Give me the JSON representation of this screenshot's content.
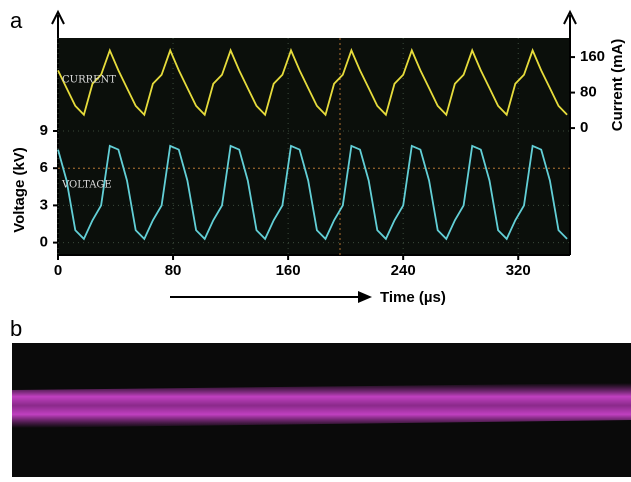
{
  "chart_data": {
    "type": "line",
    "panel_label": "a",
    "xlabel": "Time (µs)",
    "ylabel": "Voltage (kV)",
    "y2label": "Current (mA)",
    "x": [
      0,
      6,
      12,
      18,
      24,
      30,
      36,
      42,
      48,
      54,
      60,
      66,
      72,
      78,
      84,
      90,
      96,
      102,
      108,
      114,
      120,
      126,
      132,
      138,
      144,
      150,
      156,
      162,
      168,
      174,
      180,
      186,
      192,
      198,
      204,
      210,
      216,
      222,
      228,
      234,
      240,
      246,
      252,
      258,
      264,
      270,
      276,
      282,
      288,
      294,
      300,
      306,
      312,
      318,
      324,
      330,
      336,
      342,
      348,
      354
    ],
    "series": [
      {
        "name": "CURRENT",
        "color": "#e6dc3c",
        "axis": "y2",
        "values": [
          130,
          90,
          50,
          30,
          100,
          120,
          175,
          130,
          90,
          50,
          30,
          100,
          120,
          175,
          130,
          90,
          50,
          30,
          100,
          120,
          175,
          130,
          90,
          50,
          30,
          100,
          120,
          175,
          130,
          90,
          50,
          30,
          100,
          120,
          175,
          130,
          90,
          50,
          30,
          100,
          120,
          175,
          130,
          90,
          50,
          30,
          100,
          120,
          175,
          130,
          90,
          50,
          30,
          100,
          120,
          175,
          130,
          90,
          50,
          30
        ]
      },
      {
        "name": "VOLTAGE",
        "color": "#62cfd6",
        "axis": "y",
        "values": [
          7.5,
          5,
          1,
          0.3,
          1.8,
          3,
          7.8,
          7.5,
          5,
          1,
          0.3,
          1.8,
          3,
          7.8,
          7.5,
          5,
          1,
          0.3,
          1.8,
          3,
          7.8,
          7.5,
          5,
          1,
          0.3,
          1.8,
          3,
          7.8,
          7.5,
          5,
          1,
          0.3,
          1.8,
          3,
          7.8,
          7.5,
          5,
          1,
          0.3,
          1.8,
          3,
          7.8,
          7.5,
          5,
          1,
          0.3,
          1.8,
          3,
          7.8,
          7.5,
          5,
          1,
          0.3,
          1.8,
          3,
          7.8,
          7.5,
          5,
          1,
          0.3
        ]
      }
    ],
    "xlim": [
      0,
      356
    ],
    "xticks": [
      0,
      80,
      160,
      240,
      320
    ],
    "ylim": [
      -1,
      16.5
    ],
    "yticks": [
      0,
      3,
      6,
      9
    ],
    "y2lim": [
      -286,
      203
    ],
    "y2ticks": [
      0,
      80,
      160
    ]
  },
  "photo_label": "b"
}
